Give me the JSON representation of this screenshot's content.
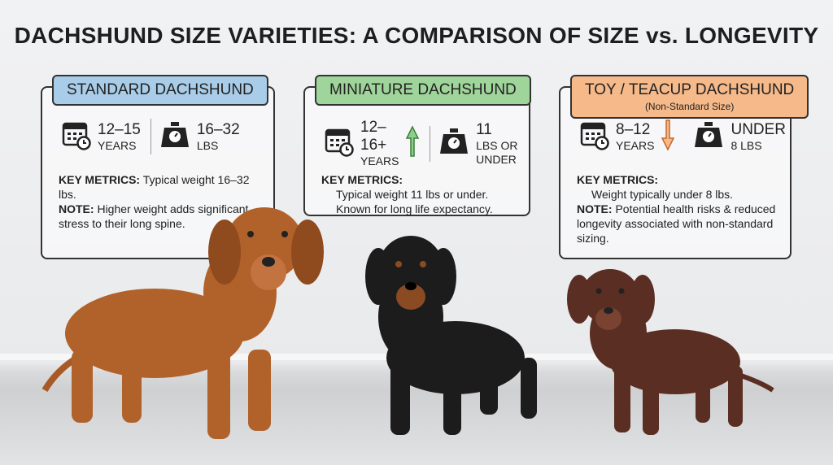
{
  "title": "DACHSHUND SIZE VARIETIES: A COMPARISON OF SIZE vs. LONGEVITY",
  "cards": [
    {
      "heading": "STANDARD DACHSHUND",
      "color": "#a9cde8",
      "lifespan": {
        "value": "12–15",
        "unit": "YEARS"
      },
      "weight": {
        "value": "16–32",
        "unit": "LBS"
      },
      "lines": [
        {
          "label": "KEY METRICS:",
          "text": "Typical weight 16–32 lbs."
        },
        {
          "label": "NOTE:",
          "text": "Higher weight adds significant stress to their long spine."
        }
      ]
    },
    {
      "heading": "MINIATURE DACHSHUND",
      "color": "#9fd49a",
      "lifespan": {
        "value": "12–16+",
        "unit": "YEARS"
      },
      "weight": {
        "value": "11",
        "unit": "LBS OR UNDER"
      },
      "lines": [
        {
          "label": "KEY METRICS:"
        },
        {
          "text": "Typical weight 11 lbs or under."
        },
        {
          "text": "Known for long life expectancy."
        }
      ]
    },
    {
      "heading": "TOY / TEACUP DACHSHUND",
      "subheading": "(Non-Standard Size)",
      "color": "#f5b98a",
      "lifespan": {
        "value": "8–12",
        "unit": "YEARS"
      },
      "weight": {
        "value": "UNDER",
        "unit": "8 LBS"
      },
      "lines": [
        {
          "label": "KEY METRICS:"
        },
        {
          "text": "Weight typically under 8 lbs."
        },
        {
          "label": "NOTE:",
          "text": "Potential health risks & reduced longevity associated with non-standard sizing."
        }
      ]
    }
  ]
}
